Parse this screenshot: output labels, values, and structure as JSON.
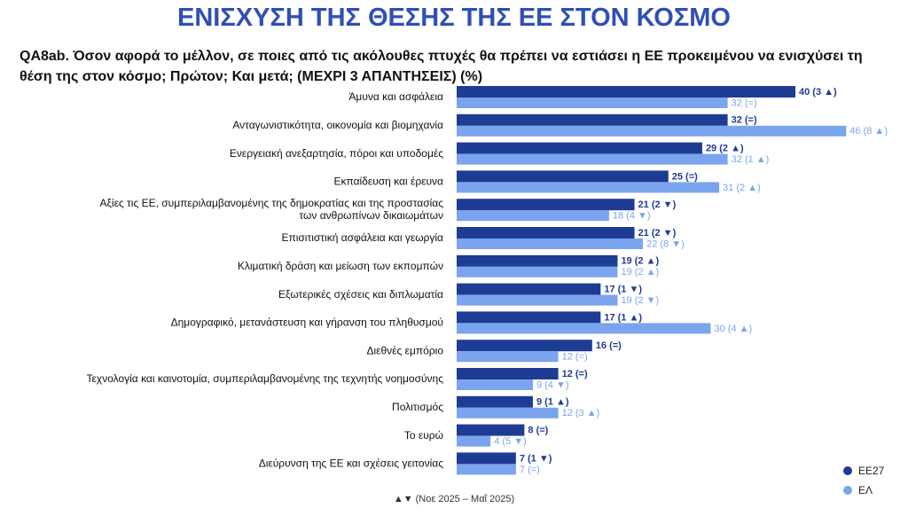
{
  "chart_data": {
    "type": "bar",
    "orientation": "horizontal",
    "title": "ΕΝΙΣΧΥΣΗ ΤΗΣ ΘΕΣΗΣ ΤΗΣ ΕΕ ΣΤΟΝ ΚΟΣΜΟ",
    "subtitle": "QA8ab. Όσον αφορά το μέλλον, σε ποιες από τις ακόλουθες πτυχές θα πρέπει να εστιάσει η ΕΕ προκειμένου να ενισχύσει τη θέση της στον κόσμο; Πρώτον; Και μετά; (ΜΕΧΡΙ 3 ΑΠΑΝΤΗΣΕΙΣ) (%)",
    "footnote": "▲▼ (Νοε 2025 – Μαΐ 2025)",
    "legend": "bottom-right",
    "categories": [
      "Άμυνα και ασφάλεια",
      "Ανταγωνιστικότητα, οικονομία και βιομηχανία",
      "Ενεργειακή ανεξαρτησία, πόροι και υποδομές",
      "Εκπαίδευση και έρευνα",
      "Αξίες τις ΕΕ, συμπεριλαμβανομένης της δημοκρατίας και της προστασίας\nτων ανθρωπίνων δικαιωμάτων",
      "Επισιτιστική ασφάλεια και γεωργία",
      "Κλιματική δράση και μείωση των εκπομπών",
      "Εξωτερικές σχέσεις και διπλωματία",
      "Δημογραφικό, μετανάστευση και γήρανση του πληθυσμού",
      "Διεθνές εμπόριο",
      "Τεχνολογία και καινοτομία, συμπεριλαμβανομένης της τεχνητής νοημοσύνης",
      "Πολιτισμός",
      "Το ευρώ",
      "Διεύρυνση της ΕΕ και σχέσεις γειτονίας"
    ],
    "series": [
      {
        "name": "EE27",
        "color": "#1e3c94",
        "values": [
          40,
          32,
          29,
          25,
          21,
          21,
          19,
          17,
          17,
          16,
          12,
          9,
          8,
          7
        ],
        "value_labels": [
          "40 (3 ▲)",
          "32 (=)",
          "29 (2 ▲)",
          "25 (=)",
          "21 (2 ▼)",
          "21 (2 ▼)",
          "19 (2 ▲)",
          "17 (1 ▼)",
          "17 (1 ▲)",
          "16 (=)",
          "12 (=)",
          "9 (1 ▲)",
          "8 (=)",
          "7 (1 ▼)"
        ]
      },
      {
        "name": "ΕΛ",
        "color": "#7aa5ee",
        "values": [
          32,
          46,
          32,
          31,
          18,
          22,
          19,
          19,
          30,
          12,
          9,
          12,
          4,
          7
        ],
        "value_labels": [
          "32 (=)",
          "46 (8 ▲)",
          "32 (1 ▲)",
          "31 (2 ▲)",
          "18 (4 ▼)",
          "22 (8 ▼)",
          "19 (2 ▲)",
          "19 (2 ▼)",
          "30 (4 ▲)",
          "12 (=)",
          "9 (4 ▼)",
          "12 (3 ▲)",
          "4 (5 ▼)",
          "7 (=)"
        ]
      }
    ]
  }
}
